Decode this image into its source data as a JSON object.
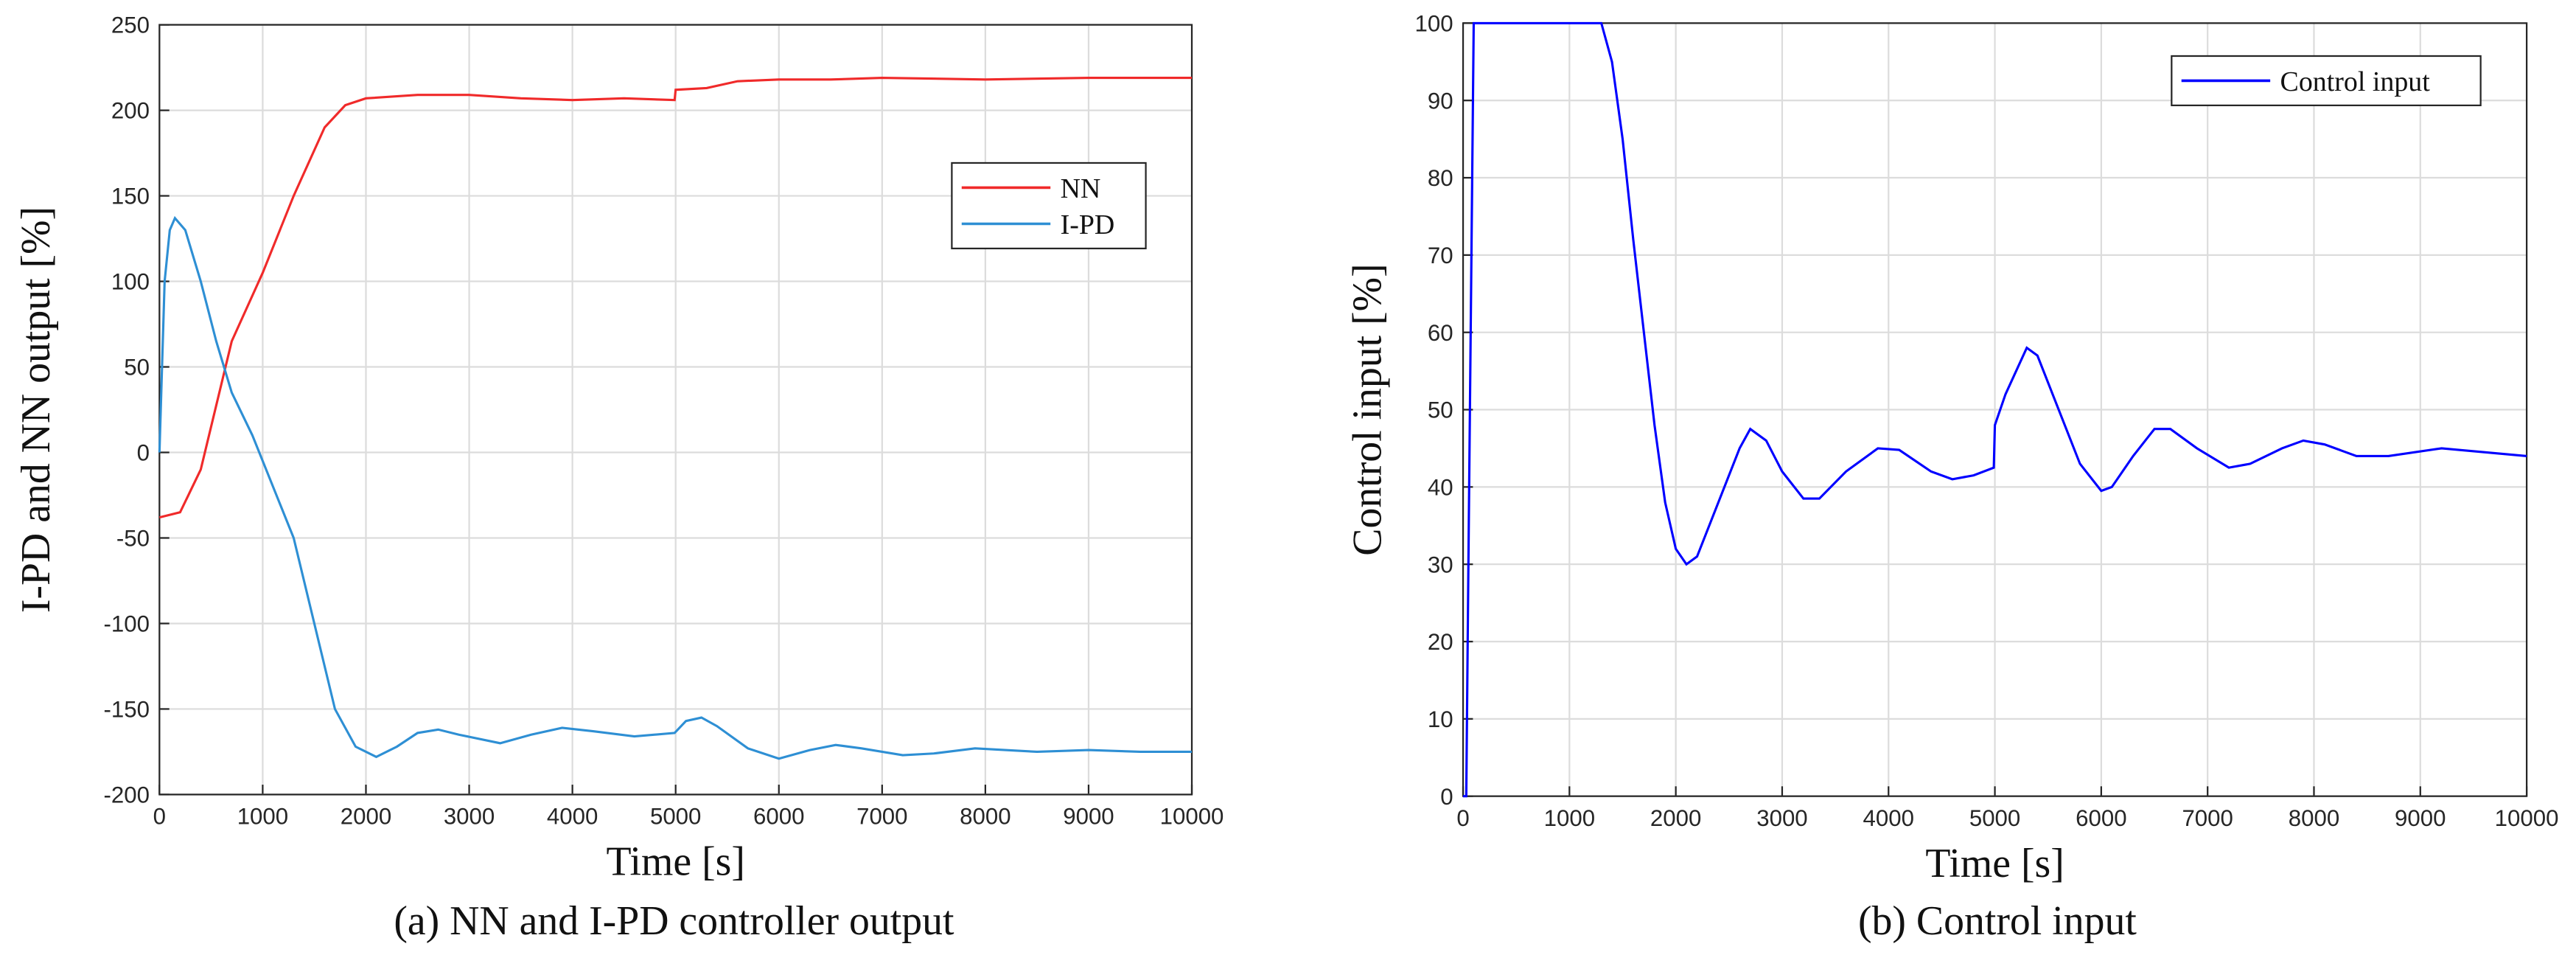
{
  "chart_data": [
    {
      "type": "line",
      "caption": "(a) NN and I-PD controller output",
      "xlabel": "Time [s]",
      "ylabel": "I-PD and NN output [%]",
      "xlim": [
        0,
        10000
      ],
      "ylim": [
        -200,
        250
      ],
      "xticks": [
        0,
        1000,
        2000,
        3000,
        4000,
        5000,
        6000,
        7000,
        8000,
        9000,
        10000
      ],
      "yticks": [
        -200,
        -150,
        -100,
        -50,
        0,
        50,
        100,
        150,
        200,
        250
      ],
      "grid": true,
      "legend": "center right",
      "series": [
        {
          "name": "NN",
          "color": "#f02a2a",
          "x": [
            0,
            200,
            400,
            600,
            700,
            1000,
            1300,
            1600,
            1800,
            2000,
            2500,
            3000,
            3500,
            4000,
            4500,
            4990,
            5000,
            5300,
            5600,
            6000,
            6500,
            7000,
            8000,
            9000,
            10000
          ],
          "values": [
            -38,
            -35,
            -10,
            40,
            65,
            105,
            150,
            190,
            203,
            207,
            209,
            209,
            207,
            206,
            207,
            206,
            212,
            213,
            217,
            218,
            218,
            219,
            218,
            219,
            219
          ]
        },
        {
          "name": "I-PD",
          "color": "#2e8fd4",
          "x": [
            0,
            50,
            100,
            150,
            250,
            400,
            550,
            700,
            900,
            1100,
            1300,
            1500,
            1700,
            1900,
            2100,
            2300,
            2500,
            2700,
            2900,
            3300,
            3600,
            3900,
            4200,
            4600,
            4990,
            5100,
            5250,
            5400,
            5700,
            6000,
            6300,
            6550,
            6800,
            7200,
            7500,
            7900,
            8500,
            9000,
            9500,
            10000
          ],
          "values": [
            0,
            100,
            130,
            137,
            130,
            100,
            65,
            35,
            10,
            -20,
            -50,
            -100,
            -150,
            -172,
            -178,
            -172,
            -164,
            -162,
            -165,
            -170,
            -165,
            -161,
            -163,
            -166,
            -164,
            -157,
            -155,
            -160,
            -173,
            -179,
            -174,
            -171,
            -173,
            -177,
            -176,
            -173,
            -175,
            -174,
            -175,
            -175
          ]
        }
      ]
    },
    {
      "type": "line",
      "caption": "(b) Control input",
      "xlabel": "Time [s]",
      "ylabel": "Control input [%]",
      "xlim": [
        0,
        10000
      ],
      "ylim": [
        0,
        100
      ],
      "xticks": [
        0,
        1000,
        2000,
        3000,
        4000,
        5000,
        6000,
        7000,
        8000,
        9000,
        10000
      ],
      "yticks": [
        0,
        10,
        20,
        30,
        40,
        50,
        60,
        70,
        80,
        90,
        100
      ],
      "grid": true,
      "legend": "upper right",
      "series": [
        {
          "name": "Control input",
          "color": "#0000ff",
          "x": [
            0,
            30,
            50,
            100,
            1300,
            1400,
            1500,
            1600,
            1700,
            1800,
            1900,
            2000,
            2100,
            2200,
            2400,
            2600,
            2700,
            2850,
            3000,
            3200,
            3350,
            3600,
            3900,
            4100,
            4400,
            4600,
            4800,
            4990,
            5000,
            5100,
            5300,
            5400,
            5600,
            5800,
            6000,
            6100,
            6300,
            6500,
            6650,
            6900,
            7200,
            7400,
            7700,
            7900,
            8100,
            8400,
            8700,
            9200,
            9600,
            10000
          ],
          "values": [
            0,
            0,
            30,
            100,
            100,
            95,
            85,
            72,
            60,
            48,
            38,
            32,
            30,
            31,
            38,
            45,
            47.5,
            46,
            42,
            38.5,
            38.5,
            42,
            45,
            44.8,
            42,
            41,
            41.5,
            42.5,
            48,
            52,
            58,
            57,
            50,
            43,
            39.5,
            40,
            44,
            47.5,
            47.5,
            45,
            42.5,
            43,
            45,
            46,
            45.5,
            44,
            44,
            45,
            44.5,
            44
          ]
        }
      ]
    }
  ]
}
